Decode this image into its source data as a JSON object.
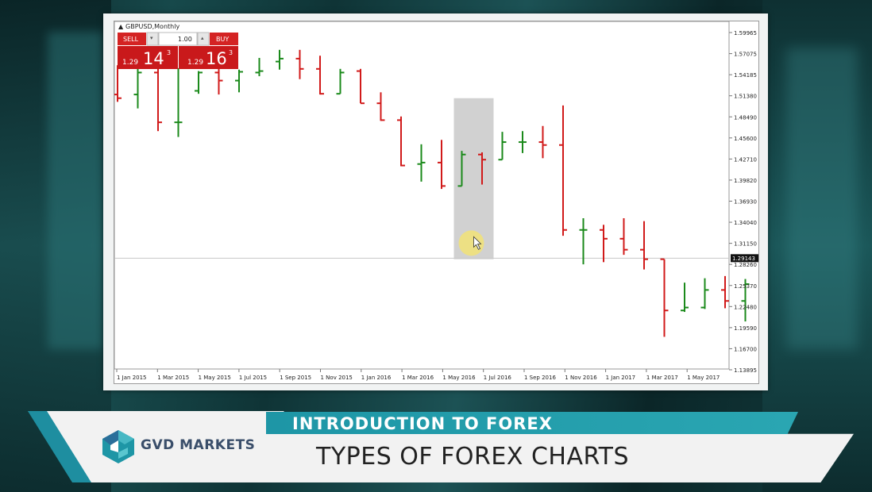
{
  "platform": {
    "symbol_label": "GBPUSD,Monthly",
    "sell_label": "SELL",
    "buy_label": "BUY",
    "lot_value": "1.00",
    "sell_price_prefix": "1.29",
    "sell_price_big": "14",
    "sell_price_sup": "3",
    "buy_price_prefix": "1.29",
    "buy_price_big": "16",
    "buy_price_sup": "3",
    "current_price_tag": "1.29143"
  },
  "banner": {
    "title": "INTRODUCTION TO FOREX",
    "subtitle": "TYPES OF FOREX CHARTS",
    "brand": "GVD MARKETS"
  },
  "colors": {
    "bull": "#1b8a1b",
    "bear": "#d11a1a",
    "accent": "#1e96a6",
    "panel_red": "#c9191b"
  },
  "chart_data": {
    "type": "ohlc",
    "title": "GBPUSD,Monthly",
    "y_ticks": [
      "1.59965",
      "1.57075",
      "1.54185",
      "1.51380",
      "1.48490",
      "1.45600",
      "1.42710",
      "1.39820",
      "1.36930",
      "1.34040",
      "1.31150",
      "1.28260",
      "1.25370",
      "1.22480",
      "1.19590",
      "1.16700",
      "1.13895"
    ],
    "ylim": [
      1.13895,
      1.59965
    ],
    "x_ticks": [
      "1 Jan 2015",
      "1 Mar 2015",
      "1 May 2015",
      "1 Jul 2015",
      "1 Sep 2015",
      "1 Nov 2015",
      "1 Jan 2016",
      "1 Mar 2016",
      "1 May 2016",
      "1 Jul 2016",
      "1 Sep 2016",
      "1 Nov 2016",
      "1 Jan 2017",
      "1 Mar 2017",
      "1 May 2017"
    ],
    "current_price": 1.29143,
    "highlight_bar_index": 17,
    "bars": [
      {
        "o": 1.515,
        "h": 1.555,
        "l": 1.505,
        "c": 1.51
      },
      {
        "o": 1.515,
        "h": 1.557,
        "l": 1.496,
        "c": 1.545
      },
      {
        "o": 1.545,
        "h": 1.55,
        "l": 1.465,
        "c": 1.477
      },
      {
        "o": 1.477,
        "h": 1.551,
        "l": 1.457,
        "c": 1.477
      },
      {
        "o": 1.52,
        "h": 1.547,
        "l": 1.516,
        "c": 1.545
      },
      {
        "o": 1.545,
        "h": 1.55,
        "l": 1.515,
        "c": 1.534
      },
      {
        "o": 1.534,
        "h": 1.549,
        "l": 1.518,
        "c": 1.546
      },
      {
        "o": 1.545,
        "h": 1.565,
        "l": 1.54,
        "c": 1.547
      },
      {
        "o": 1.56,
        "h": 1.576,
        "l": 1.549,
        "c": 1.564
      },
      {
        "o": 1.564,
        "h": 1.576,
        "l": 1.536,
        "c": 1.55
      },
      {
        "o": 1.55,
        "h": 1.568,
        "l": 1.515,
        "c": 1.516
      },
      {
        "o": 1.516,
        "h": 1.55,
        "l": 1.516,
        "c": 1.545
      },
      {
        "o": 1.547,
        "h": 1.55,
        "l": 1.503,
        "c": 1.503
      },
      {
        "o": 1.503,
        "h": 1.518,
        "l": 1.479,
        "c": 1.48
      },
      {
        "o": 1.48,
        "h": 1.485,
        "l": 1.417,
        "c": 1.418
      },
      {
        "o": 1.42,
        "h": 1.447,
        "l": 1.396,
        "c": 1.422
      },
      {
        "o": 1.422,
        "h": 1.453,
        "l": 1.386,
        "c": 1.39
      },
      {
        "o": 1.39,
        "h": 1.438,
        "l": 1.39,
        "c": 1.433
      },
      {
        "o": 1.433,
        "h": 1.436,
        "l": 1.392,
        "c": 1.426
      },
      {
        "o": 1.426,
        "h": 1.464,
        "l": 1.426,
        "c": 1.45
      },
      {
        "o": 1.45,
        "h": 1.465,
        "l": 1.435,
        "c": 1.45
      },
      {
        "o": 1.45,
        "h": 1.472,
        "l": 1.428,
        "c": 1.446
      },
      {
        "o": 1.446,
        "h": 1.5,
        "l": 1.322,
        "c": 1.33
      },
      {
        "o": 1.33,
        "h": 1.346,
        "l": 1.283,
        "c": 1.33
      },
      {
        "o": 1.33,
        "h": 1.337,
        "l": 1.286,
        "c": 1.318
      },
      {
        "o": 1.318,
        "h": 1.346,
        "l": 1.296,
        "c": 1.303
      },
      {
        "o": 1.303,
        "h": 1.342,
        "l": 1.276,
        "c": 1.29
      },
      {
        "o": 1.29,
        "h": 1.29,
        "l": 1.184,
        "c": 1.22
      },
      {
        "o": 1.22,
        "h": 1.258,
        "l": 1.218,
        "c": 1.224
      },
      {
        "o": 1.224,
        "h": 1.264,
        "l": 1.222,
        "c": 1.248
      },
      {
        "o": 1.248,
        "h": 1.267,
        "l": 1.223,
        "c": 1.233
      },
      {
        "o": 1.233,
        "h": 1.263,
        "l": 1.205,
        "c": 1.256
      },
      {
        "o": 1.256,
        "h": 1.265,
        "l": 1.234,
        "c": 1.256
      },
      {
        "o": 1.256,
        "h": 1.27,
        "l": 1.234,
        "c": 1.242
      },
      {
        "o": 1.242,
        "h": 1.26,
        "l": 1.215,
        "c": 1.255
      },
      {
        "o": 1.255,
        "h": 1.289,
        "l": 1.237,
        "c": 1.291
      },
      {
        "o": 1.291,
        "h": 1.293,
        "l": 1.284,
        "c": 1.291
      }
    ]
  }
}
